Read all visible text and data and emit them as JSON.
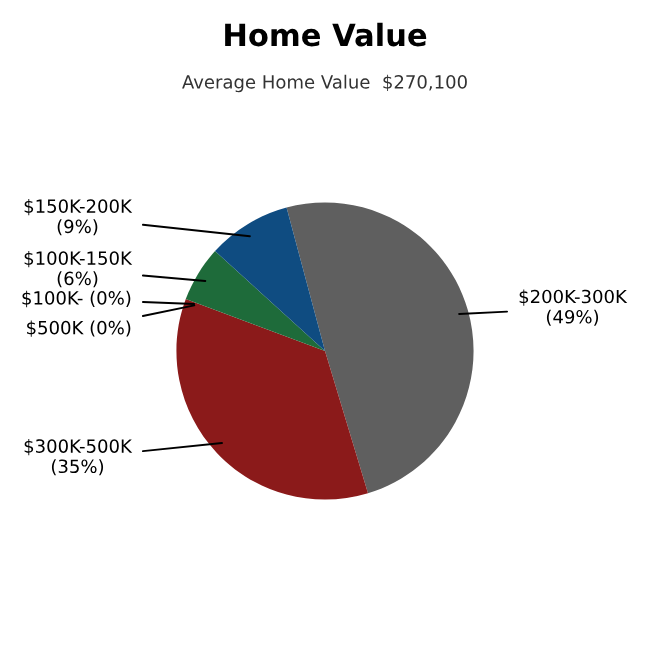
{
  "chart_data": {
    "type": "pie",
    "title": "Home Value",
    "subtitle": "Average Home Value  $270,100",
    "categories": [
      "$200K-300K",
      "$300K-500K",
      "$500K",
      "$100K-",
      "$100K-150K",
      "$150K-200K"
    ],
    "values": [
      49,
      35,
      0,
      0,
      6,
      9
    ],
    "value_labels": [
      "(49%)",
      "(35%)",
      "(0%)",
      "(0%)",
      "(6%)",
      "(9%)"
    ],
    "colors": [
      "#5f5f5f",
      "#8b1a1a",
      "#8b1a1a",
      "#1e6b3a",
      "#1e6b3a",
      "#0f4c81"
    ]
  }
}
